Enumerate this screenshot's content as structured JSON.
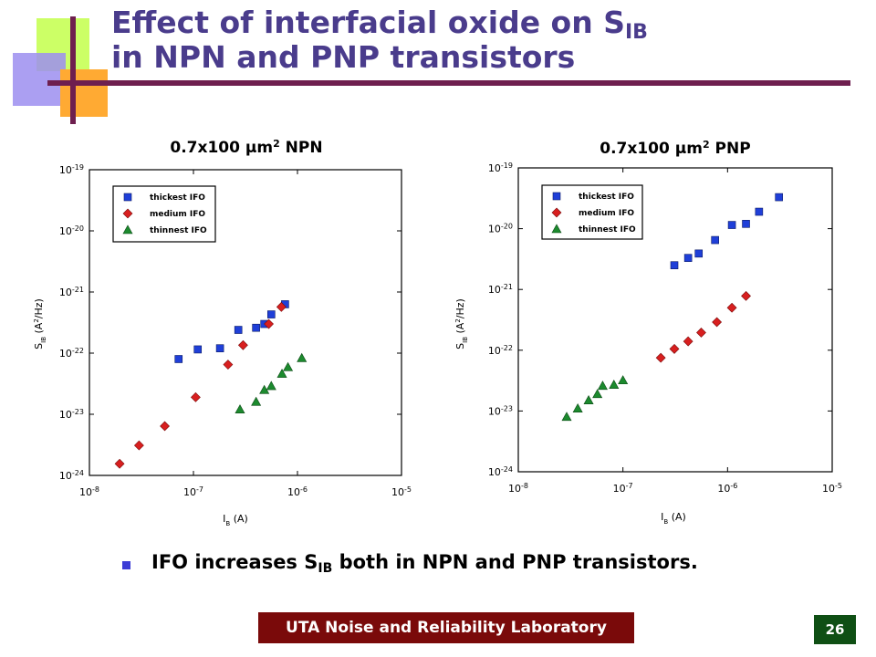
{
  "slide": {
    "title_main": "Effect of interfacial oxide on S",
    "title_sub": "IB",
    "title_line2": "in NPN and PNP transistors",
    "bullet_main": "IFO increases S",
    "bullet_sub": "IB",
    "bullet_rest": " both in NPN and PNP transistors.",
    "footer": "UTA Noise and Reliability Laboratory",
    "page_number": "26",
    "colors": {
      "title": "#4a3c8c",
      "footer_bg": "#7a0a0a",
      "page_bg": "#0f4f14",
      "bullet": "#3d3dd6"
    }
  },
  "chart_data": [
    {
      "type": "scatter",
      "title": "0.7x100 µm",
      "title_sup": "2",
      "title_suffix": " NPN",
      "xscale": "log",
      "yscale": "log",
      "xlim": [
        1e-08,
        1e-05
      ],
      "ylim": [
        1e-24,
        1e-19
      ],
      "x_ticks": [
        {
          "base": "10",
          "exp": "-8"
        },
        {
          "base": "10",
          "exp": "-7"
        },
        {
          "base": "10",
          "exp": "-6"
        },
        {
          "base": "10",
          "exp": "-5"
        }
      ],
      "y_ticks": [
        {
          "base": "10",
          "exp": "-19"
        },
        {
          "base": "10",
          "exp": "-20"
        },
        {
          "base": "10",
          "exp": "-21"
        },
        {
          "base": "10",
          "exp": "-22"
        },
        {
          "base": "10",
          "exp": "-23"
        },
        {
          "base": "10",
          "exp": "-24"
        }
      ],
      "xlabel": {
        "main": "I",
        "sub": "B",
        "rest": " (A)"
      },
      "ylabel": {
        "main": "S",
        "sub": "IB",
        "rest": " (A",
        "sup": "2",
        "rest2": "/Hz)"
      },
      "legend_position": "top-left",
      "series": [
        {
          "name": "thickest IFO",
          "marker": "square",
          "color": "#1f3fd8",
          "points": [
            [
              7.2e-08,
              8e-23
            ],
            [
              1.1e-07,
              1.15e-22
            ],
            [
              1.8e-07,
              1.2e-22
            ],
            [
              2.7e-07,
              2.4e-22
            ],
            [
              4e-07,
              2.6e-22
            ],
            [
              4.8e-07,
              3e-22
            ],
            [
              5.6e-07,
              4.3e-22
            ],
            [
              7.6e-07,
              6.3e-22
            ]
          ]
        },
        {
          "name": "medium IFO",
          "marker": "diamond",
          "color": "#d81f1f",
          "points": [
            [
              1.95e-08,
              1.55e-24
            ],
            [
              3e-08,
              3.1e-24
            ],
            [
              5.3e-08,
              6.4e-24
            ],
            [
              1.05e-07,
              1.9e-23
            ],
            [
              2.15e-07,
              6.5e-23
            ],
            [
              3e-07,
              1.35e-22
            ],
            [
              5.3e-07,
              3e-22
            ],
            [
              7e-07,
              5.7e-22
            ]
          ]
        },
        {
          "name": "thinnest IFO",
          "marker": "triangle",
          "color": "#1c8a2e",
          "points": [
            [
              2.8e-07,
              1.2e-23
            ],
            [
              4e-07,
              1.6e-23
            ],
            [
              4.8e-07,
              2.5e-23
            ],
            [
              5.6e-07,
              2.9e-23
            ],
            [
              7.1e-07,
              4.6e-23
            ],
            [
              8.1e-07,
              5.9e-23
            ],
            [
              1.1e-06,
              8.3e-23
            ]
          ]
        }
      ]
    },
    {
      "type": "scatter",
      "title": "0.7x100 µm",
      "title_sup": "2",
      "title_suffix": " PNP",
      "xscale": "log",
      "yscale": "log",
      "xlim": [
        1e-08,
        1e-05
      ],
      "ylim": [
        1e-24,
        1e-19
      ],
      "x_ticks": [
        {
          "base": "10",
          "exp": "-8"
        },
        {
          "base": "10",
          "exp": "-7"
        },
        {
          "base": "10",
          "exp": "-6"
        },
        {
          "base": "10",
          "exp": "-5"
        }
      ],
      "y_ticks": [
        {
          "base": "10",
          "exp": "-19"
        },
        {
          "base": "10",
          "exp": "-20"
        },
        {
          "base": "10",
          "exp": "-21"
        },
        {
          "base": "10",
          "exp": "-22"
        },
        {
          "base": "10",
          "exp": "-23"
        },
        {
          "base": "10",
          "exp": "-24"
        }
      ],
      "xlabel": {
        "main": "I",
        "sub": "B",
        "rest": " (A)"
      },
      "ylabel": {
        "main": "S",
        "sub": "IB",
        "rest": " (A",
        "sup": "2",
        "rest2": "/Hz)"
      },
      "legend_position": "top-left",
      "series": [
        {
          "name": "thickest IFO",
          "marker": "square",
          "color": "#1f3fd8",
          "points": [
            [
              3.1e-07,
              2.5e-21
            ],
            [
              4.2e-07,
              3.3e-21
            ],
            [
              5.3e-07,
              3.9e-21
            ],
            [
              7.6e-07,
              6.5e-21
            ],
            [
              1.1e-06,
              1.15e-20
            ],
            [
              1.5e-06,
              1.2e-20
            ],
            [
              2e-06,
              1.9e-20
            ],
            [
              3.1e-06,
              3.3e-20
            ]
          ]
        },
        {
          "name": "medium IFO",
          "marker": "diamond",
          "color": "#d81f1f",
          "points": [
            [
              2.3e-07,
              7.5e-23
            ],
            [
              3.1e-07,
              1.05e-22
            ],
            [
              4.2e-07,
              1.4e-22
            ],
            [
              5.6e-07,
              1.95e-22
            ],
            [
              7.9e-07,
              2.9e-22
            ],
            [
              1.1e-06,
              5e-22
            ],
            [
              1.5e-06,
              7.8e-22
            ]
          ]
        },
        {
          "name": "thinnest IFO",
          "marker": "triangle",
          "color": "#1c8a2e",
          "points": [
            [
              2.9e-08,
              8e-24
            ],
            [
              3.7e-08,
              1.1e-23
            ],
            [
              4.7e-08,
              1.5e-23
            ],
            [
              5.7e-08,
              1.9e-23
            ],
            [
              6.4e-08,
              2.6e-23
            ],
            [
              8.2e-08,
              2.7e-23
            ],
            [
              1e-07,
              3.2e-23
            ]
          ]
        }
      ]
    }
  ]
}
